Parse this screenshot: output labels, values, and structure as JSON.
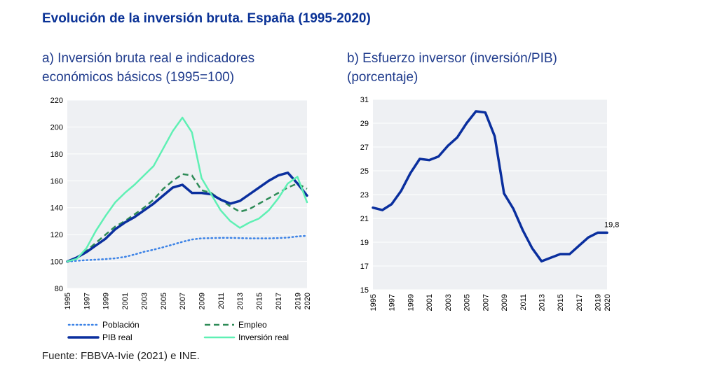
{
  "figure": {
    "title": "Evolución de la inversión bruta. España (1995-2020)",
    "source": "Fuente: FBBVA-Ivie (2021) e INE."
  },
  "colors": {
    "title": "#0a3296",
    "poblacion": "#3b82e6",
    "empleo": "#2e8b57",
    "pib_real": "#0a2f9e",
    "inversion_real": "#5ff0b4",
    "plot_bg": "#eef0f3",
    "grid": "#ffffff"
  },
  "chart_data": [
    {
      "type": "line",
      "title": "a) Inversión bruta real e indicadores\neconómicos básicos (1995=100)",
      "xlabel": "",
      "ylabel": "",
      "x": [
        1995,
        1996,
        1997,
        1998,
        1999,
        2000,
        2001,
        2002,
        2003,
        2004,
        2005,
        2006,
        2007,
        2008,
        2009,
        2010,
        2011,
        2012,
        2013,
        2014,
        2015,
        2016,
        2017,
        2018,
        2019,
        2020
      ],
      "x_ticks": [
        "1995",
        "1997",
        "1999",
        "2001",
        "2003",
        "2005",
        "2007",
        "2009",
        "2011",
        "2013",
        "2015",
        "2017",
        "2019",
        "2020"
      ],
      "ylim": [
        80,
        220
      ],
      "y_ticks": [
        "80",
        "100",
        "120",
        "140",
        "160",
        "180",
        "200",
        "220"
      ],
      "grid": true,
      "legend_position": "bottom",
      "series": [
        {
          "name": "Población",
          "style": "dotted",
          "color_key": "poblacion",
          "values": [
            100,
            100.5,
            101,
            101.4,
            101.8,
            102.4,
            103.4,
            105.2,
            107.2,
            108.8,
            110.6,
            112.6,
            114.6,
            116.4,
            117.2,
            117.4,
            117.6,
            117.6,
            117.4,
            117.2,
            117.2,
            117.2,
            117.4,
            117.8,
            118.6,
            119.2
          ]
        },
        {
          "name": "Empleo",
          "style": "dashed",
          "color_key": "empleo",
          "values": [
            100,
            103,
            108,
            114,
            120,
            126,
            130,
            135,
            140,
            146,
            154,
            160,
            165,
            164,
            153,
            151,
            146,
            141,
            137,
            139,
            143,
            147,
            151,
            155,
            158,
            154
          ]
        },
        {
          "name": "PIB real",
          "style": "solid-thick",
          "color_key": "pib_real",
          "values": [
            100,
            103,
            107,
            112,
            117,
            124,
            129,
            133,
            138,
            143,
            149,
            155,
            157,
            151,
            151,
            150,
            146,
            143,
            145,
            150,
            155,
            160,
            164,
            166,
            158,
            149
          ]
        },
        {
          "name": "Inversión real",
          "style": "solid",
          "color_key": "inversion_real",
          "values": [
            100,
            102,
            110,
            123,
            134,
            144,
            151,
            157,
            164,
            171,
            184,
            197,
            207,
            196,
            162,
            150,
            138,
            130,
            125,
            129,
            132,
            138,
            147,
            158,
            163,
            144
          ]
        }
      ]
    },
    {
      "type": "line",
      "title": "b) Esfuerzo inversor (inversión/PIB)\n(porcentaje)",
      "xlabel": "",
      "ylabel": "",
      "x": [
        1995,
        1996,
        1997,
        1998,
        1999,
        2000,
        2001,
        2002,
        2003,
        2004,
        2005,
        2006,
        2007,
        2008,
        2009,
        2010,
        2011,
        2012,
        2013,
        2014,
        2015,
        2016,
        2017,
        2018,
        2019,
        2020
      ],
      "x_ticks": [
        "1995",
        "1997",
        "1999",
        "2001",
        "2003",
        "2005",
        "2007",
        "2009",
        "2011",
        "2013",
        "2015",
        "2017",
        "2019",
        "2020"
      ],
      "ylim": [
        15,
        31
      ],
      "y_ticks": [
        "15",
        "17",
        "19",
        "21",
        "23",
        "25",
        "27",
        "29",
        "31"
      ],
      "grid": true,
      "series": [
        {
          "name": "",
          "style": "solid-thick",
          "color_key": "pib_real",
          "values": [
            21.9,
            21.7,
            22.2,
            23.3,
            24.8,
            26.0,
            25.9,
            26.2,
            27.1,
            27.8,
            29.0,
            30.0,
            29.9,
            27.9,
            23.1,
            21.8,
            20.0,
            18.5,
            17.4,
            17.7,
            18.0,
            18.0,
            18.7,
            19.4,
            19.8,
            19.8
          ]
        }
      ],
      "annotations": [
        {
          "x": 2020,
          "y": 19.8,
          "text": "19,8"
        }
      ]
    }
  ]
}
